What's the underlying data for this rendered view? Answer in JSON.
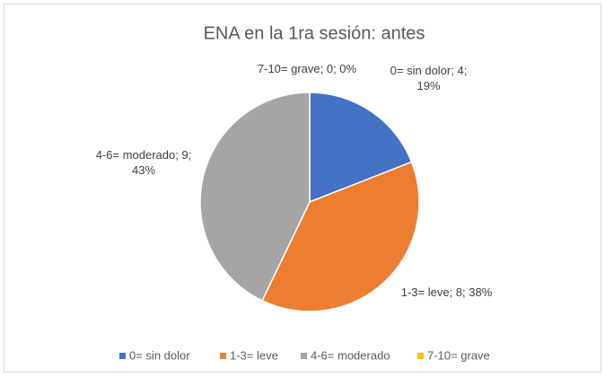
{
  "chart_data": {
    "type": "pie",
    "title": "ENA en la 1ra sesión: antes",
    "categories": [
      "0= sin dolor",
      "1-3= leve",
      "4-6= moderado",
      "7-10= grave"
    ],
    "values": [
      4,
      8,
      9,
      0
    ],
    "value_labels": [
      "0= sin dolor; 4; 19%",
      "1-3= leve; 8; 38%",
      "4-6= moderado; 9; 43%",
      "7-10= grave; 0; 0%"
    ],
    "colors": [
      "#4472c4",
      "#ed7d31",
      "#a5a5a5",
      "#ffc000"
    ],
    "legend": "bottom"
  }
}
